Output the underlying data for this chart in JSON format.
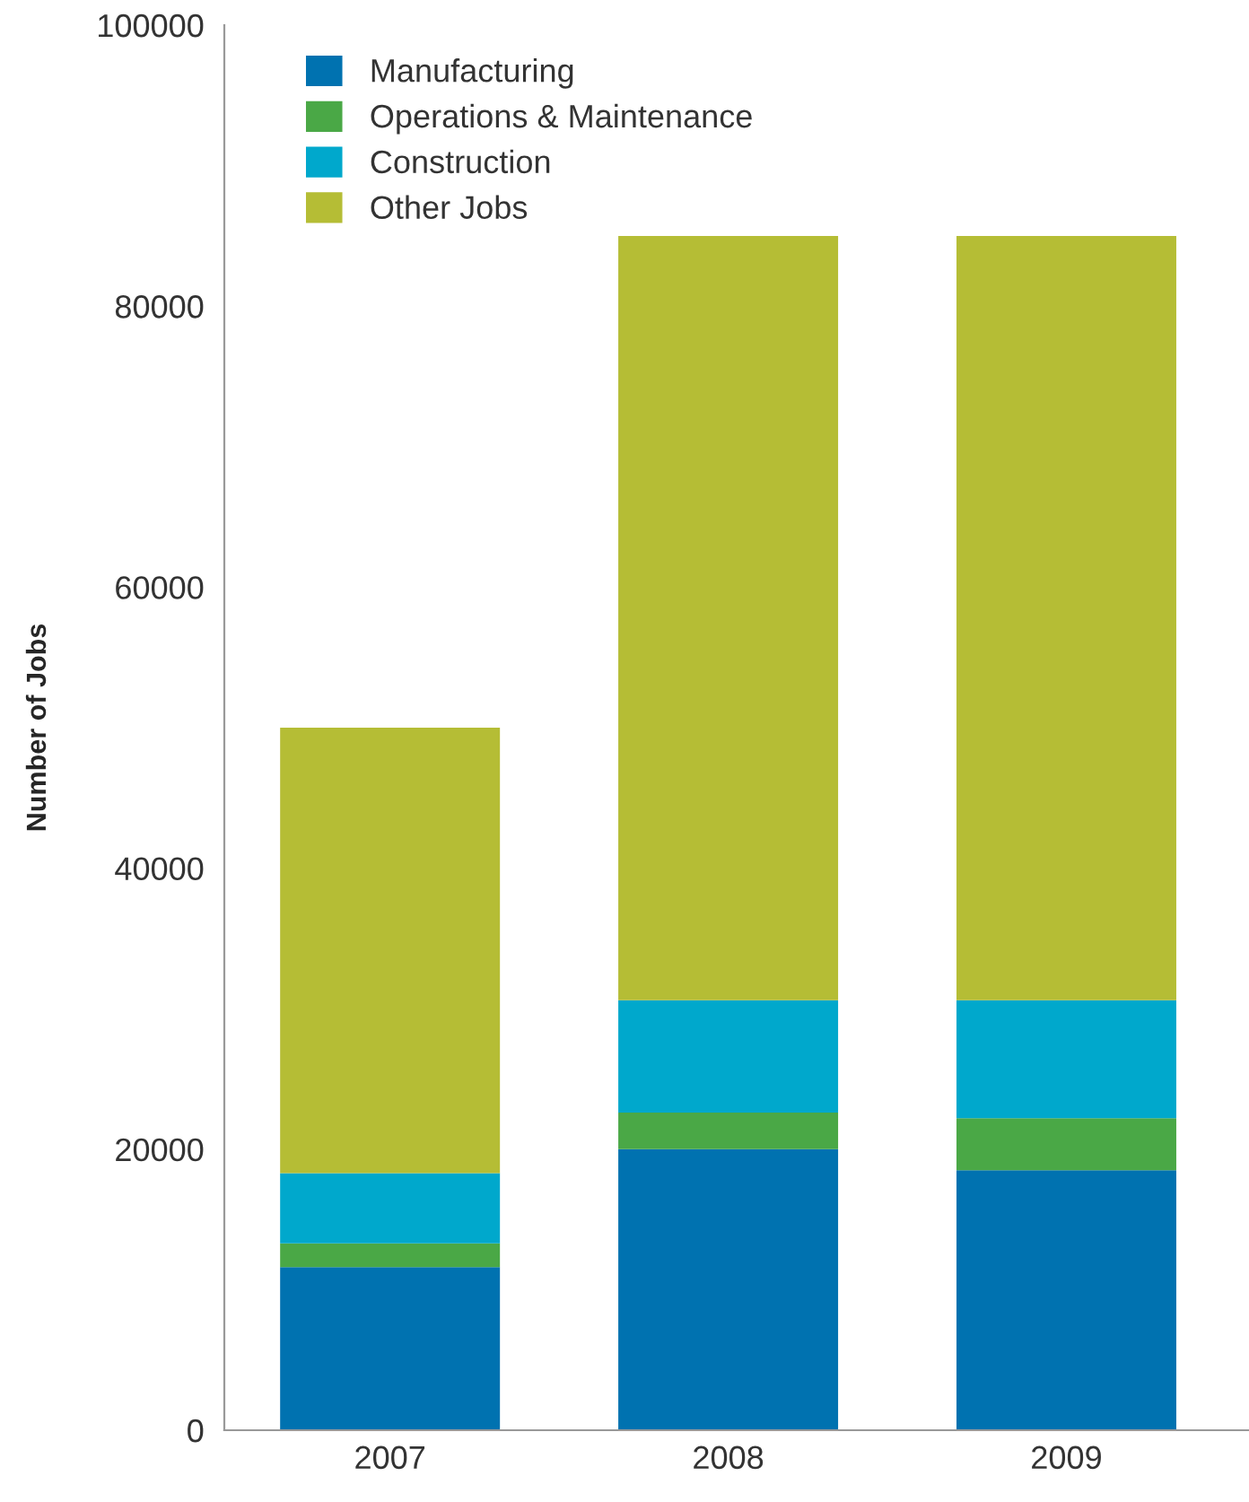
{
  "chart_data": {
    "type": "bar",
    "stacked": true,
    "ylabel": "Number of Jobs",
    "categories": [
      "2007",
      "2008",
      "2009"
    ],
    "series": [
      {
        "name": "Manufacturing",
        "color": "#0072b0",
        "values": [
          11600,
          20000,
          18500
        ]
      },
      {
        "name": "Operations & Maintenance",
        "color": "#4aa846",
        "values": [
          1700,
          2600,
          3700
        ]
      },
      {
        "name": "Construction",
        "color": "#00a8cc",
        "values": [
          5000,
          8000,
          8400
        ]
      },
      {
        "name": "Other Jobs",
        "color": "#b5bd35",
        "values": [
          31700,
          54400,
          54400
        ]
      }
    ],
    "ylim": [
      0,
      100000
    ],
    "yticks": [
      0,
      20000,
      40000,
      60000,
      80000,
      100000
    ],
    "grid": false,
    "legend": "top left"
  }
}
